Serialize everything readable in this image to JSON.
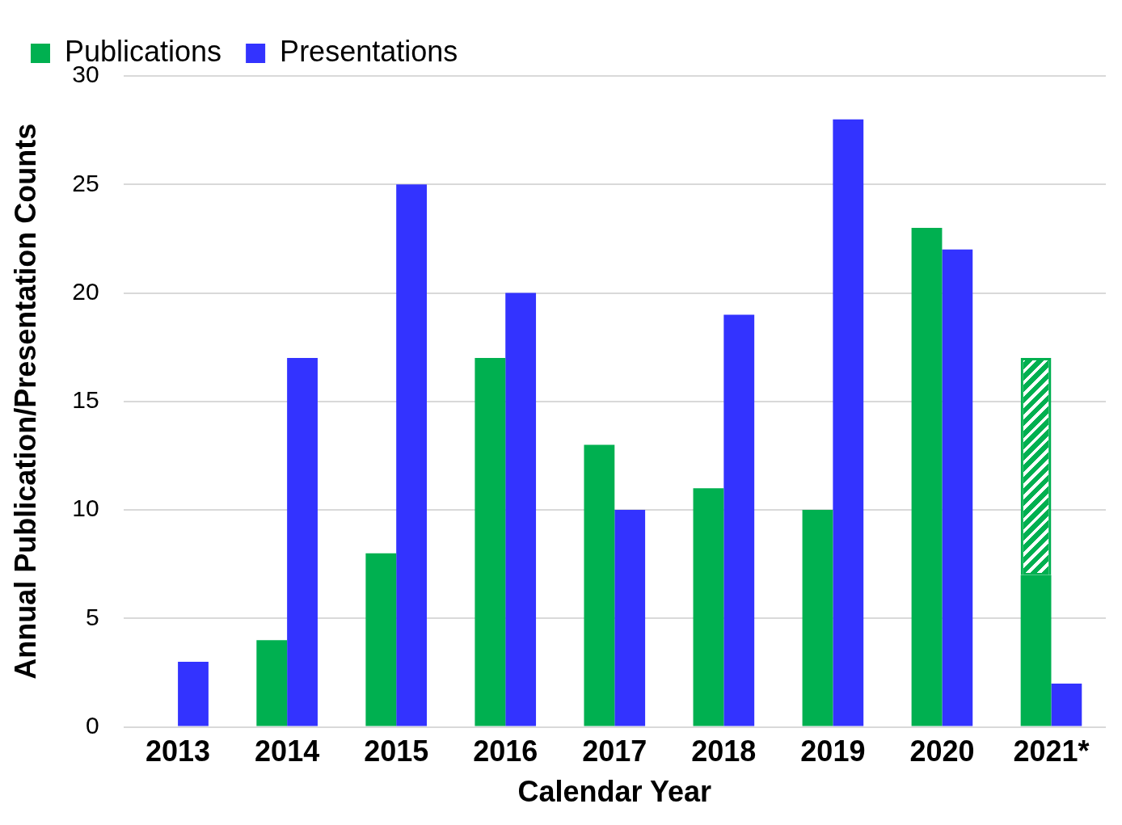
{
  "chart_data": {
    "type": "bar",
    "xlabel": "Calendar Year",
    "ylabel": "Annual Publication/Presentation Counts",
    "categories": [
      "2013",
      "2014",
      "2015",
      "2016",
      "2017",
      "2018",
      "2019",
      "2020",
      "2021*"
    ],
    "series": [
      {
        "name": "Publications",
        "color": "#00b050",
        "values": [
          null,
          4,
          8,
          17,
          13,
          11,
          10,
          23,
          7
        ]
      },
      {
        "color": "#00b050",
        "values": [
          null,
          null,
          null,
          null,
          null,
          null,
          null,
          null,
          10
        ],
        "base": [
          null,
          null,
          null,
          null,
          null,
          null,
          null,
          null,
          7
        ]
      },
      {
        "name": "Presentations",
        "color": "#3333ff",
        "values": [
          3,
          17,
          25,
          20,
          10,
          19,
          28,
          22,
          2
        ]
      }
    ],
    "ylim": [
      0,
      30
    ],
    "yticks": [
      0,
      5,
      10,
      15,
      20,
      25,
      30
    ],
    "grid": "y",
    "legend": "top left"
  }
}
